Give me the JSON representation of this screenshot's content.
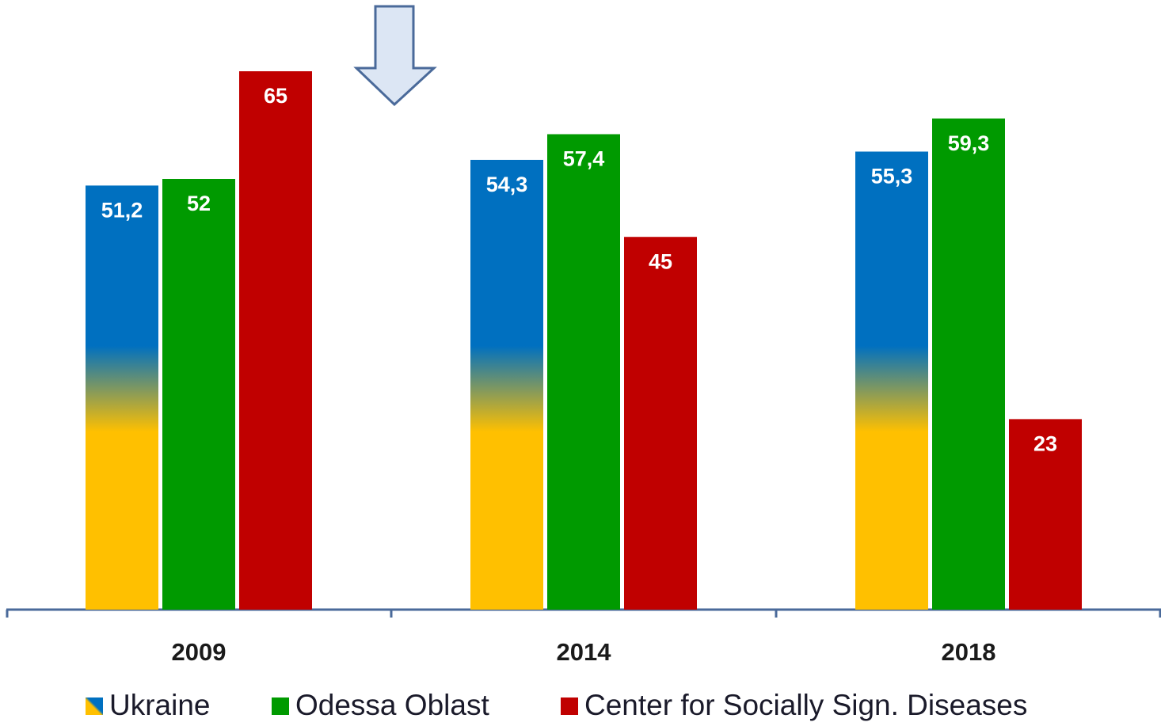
{
  "chart_data": {
    "type": "bar",
    "categories": [
      "2009",
      "2014",
      "2018"
    ],
    "series": [
      {
        "name": "Ukraine",
        "color": "#0070c0",
        "values": [
          51.2,
          54.3,
          55.3
        ],
        "value_labels": [
          "51,2",
          "54,3",
          "55,3"
        ]
      },
      {
        "name": "Odessa Oblast",
        "color": "#009a00",
        "values": [
          52,
          57.4,
          59.3
        ],
        "value_labels": [
          "52",
          "57,4",
          "59,3"
        ]
      },
      {
        "name": "Center for Socially Sign. Diseases",
        "color": "#c00000",
        "values": [
          65,
          45,
          23
        ],
        "value_labels": [
          "65",
          "45",
          "23"
        ]
      }
    ]
  }
}
